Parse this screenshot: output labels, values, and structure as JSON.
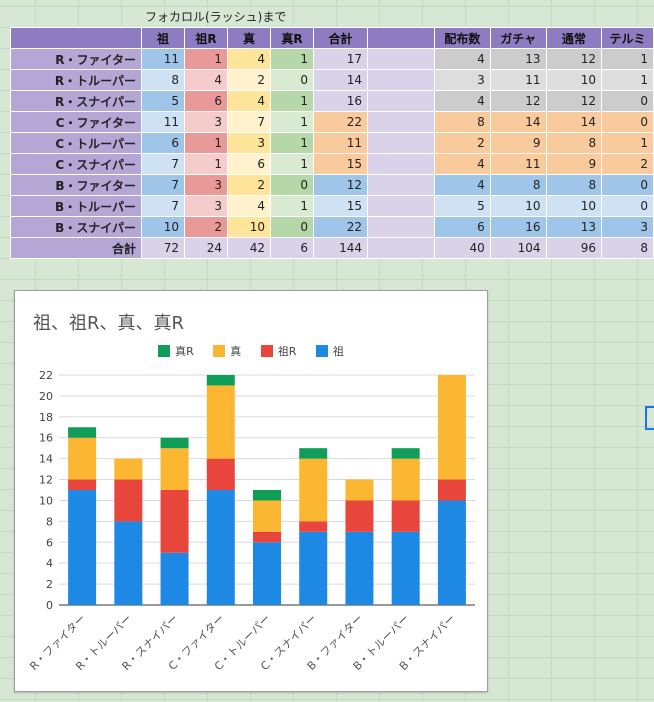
{
  "caption": "フォカロル(ラッシュ)まで",
  "left_table": {
    "headers": [
      "",
      "祖",
      "祖R",
      "真",
      "真R",
      "合計"
    ],
    "rows": [
      {
        "label": "R・ファイター",
        "v": [
          "11",
          "1",
          "4",
          "1",
          "17"
        ]
      },
      {
        "label": "R・トルーパー",
        "v": [
          "8",
          "4",
          "2",
          "0",
          "14"
        ]
      },
      {
        "label": "R・スナイパー",
        "v": [
          "5",
          "6",
          "4",
          "1",
          "16"
        ]
      },
      {
        "label": "C・ファイター",
        "v": [
          "11",
          "3",
          "7",
          "1",
          "22"
        ]
      },
      {
        "label": "C・トルーパー",
        "v": [
          "6",
          "1",
          "3",
          "1",
          "11"
        ]
      },
      {
        "label": "C・スナイパー",
        "v": [
          "7",
          "1",
          "6",
          "1",
          "15"
        ]
      },
      {
        "label": "B・ファイター",
        "v": [
          "7",
          "3",
          "2",
          "0",
          "12"
        ]
      },
      {
        "label": "B・トルーパー",
        "v": [
          "7",
          "3",
          "4",
          "1",
          "15"
        ]
      },
      {
        "label": "B・スナイパー",
        "v": [
          "10",
          "2",
          "10",
          "0",
          "22"
        ]
      }
    ],
    "total": {
      "label": "合計",
      "v": [
        "72",
        "24",
        "42",
        "6",
        "144"
      ]
    }
  },
  "right_table": {
    "headers": [
      "配布数",
      "ガチャ",
      "通常",
      "テルミ"
    ],
    "rows": [
      [
        "4",
        "13",
        "12",
        "1"
      ],
      [
        "3",
        "11",
        "10",
        "1"
      ],
      [
        "4",
        "12",
        "12",
        "0"
      ],
      [
        "8",
        "14",
        "14",
        "0"
      ],
      [
        "2",
        "9",
        "8",
        "1"
      ],
      [
        "4",
        "11",
        "9",
        "2"
      ],
      [
        "4",
        "8",
        "8",
        "0"
      ],
      [
        "5",
        "10",
        "10",
        "0"
      ],
      [
        "6",
        "16",
        "13",
        "3"
      ]
    ],
    "total": [
      "40",
      "104",
      "96",
      "8"
    ]
  },
  "colors": {
    "so": "#1e88e5",
    "soR": "#e8453c",
    "shin": "#fbb632",
    "shinR": "#0f9d58"
  },
  "chart_data": {
    "type": "bar",
    "stacked": true,
    "title": "祖、祖R、真、真R",
    "categories": [
      "R・ファイター",
      "R・トルーパー",
      "R・スナイパー",
      "C・ファイター",
      "C・トルーパー",
      "C・スナイパー",
      "B・ファイター",
      "B・トルーパー",
      "B・スナイパー"
    ],
    "series": [
      {
        "name": "祖",
        "key": "so",
        "values": [
          11,
          8,
          5,
          11,
          6,
          7,
          7,
          7,
          10
        ]
      },
      {
        "name": "祖R",
        "key": "soR",
        "values": [
          1,
          4,
          6,
          3,
          1,
          1,
          3,
          3,
          2
        ]
      },
      {
        "name": "真",
        "key": "shin",
        "values": [
          4,
          2,
          4,
          7,
          3,
          6,
          2,
          4,
          10
        ]
      },
      {
        "name": "真R",
        "key": "shinR",
        "values": [
          1,
          0,
          1,
          1,
          1,
          1,
          0,
          1,
          0
        ]
      }
    ],
    "legend_order": [
      "真R",
      "真",
      "祖R",
      "祖"
    ],
    "ylim": [
      0,
      22
    ],
    "yticks": [
      0,
      2,
      4,
      6,
      8,
      10,
      12,
      14,
      16,
      18,
      20,
      22
    ],
    "xlabel": "",
    "ylabel": ""
  }
}
